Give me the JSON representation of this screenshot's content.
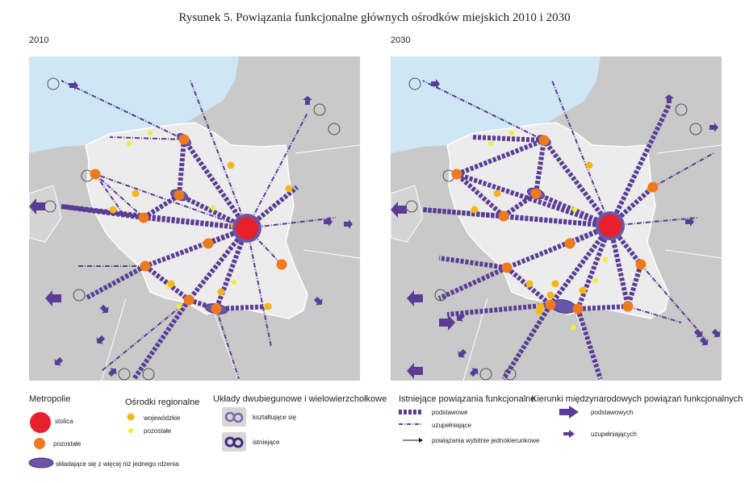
{
  "title": "Rysunek 5. Powiązania funkcjonalne głównych ośrodków miejskich 2010 i 2030",
  "map_left": {
    "year": "2010"
  },
  "map_right": {
    "year": "2030"
  },
  "colors": {
    "sea": "#cfe6f4",
    "neighbour_land": "#c9c9c9",
    "poland": "#ececec",
    "link": "#5a3c94",
    "metropolis_capital": "#e8202b",
    "metropolis_other": "#ef7a1d",
    "regional_voivodeship": "#f3b71b",
    "regional_other": "#f5ec3c"
  },
  "legend": {
    "metropolie": {
      "heading": "Metropolie",
      "stolica": "stolica",
      "pozostale": "pozostałe",
      "multi_core": "składające się z więcej niż jednego rdzenia"
    },
    "osrodki": {
      "heading": "Ośrodki regionalne",
      "wojewodzkie": "wojewódzkie",
      "pozostale": "pozostałe"
    },
    "uklady": {
      "heading": "Układy dwubiegunowe i wielowierzchołkowe",
      "ksztaltujace": "kształtujące się",
      "istniejace": "istniejące"
    },
    "powiazania": {
      "heading": "Istniejące powiązania funkcjonalne",
      "podstawowe": "podstawowe",
      "uzupelniajace": "uzupełniające",
      "jednokierunkowe": "powiązania wybitnie jednokierunkowe"
    },
    "kierunki": {
      "heading": "Kierunki międzynarodowych powiązań funkcjonalnych",
      "podstawowych": "podstawowych",
      "uzupelniajacych": "uzupełniających"
    }
  }
}
